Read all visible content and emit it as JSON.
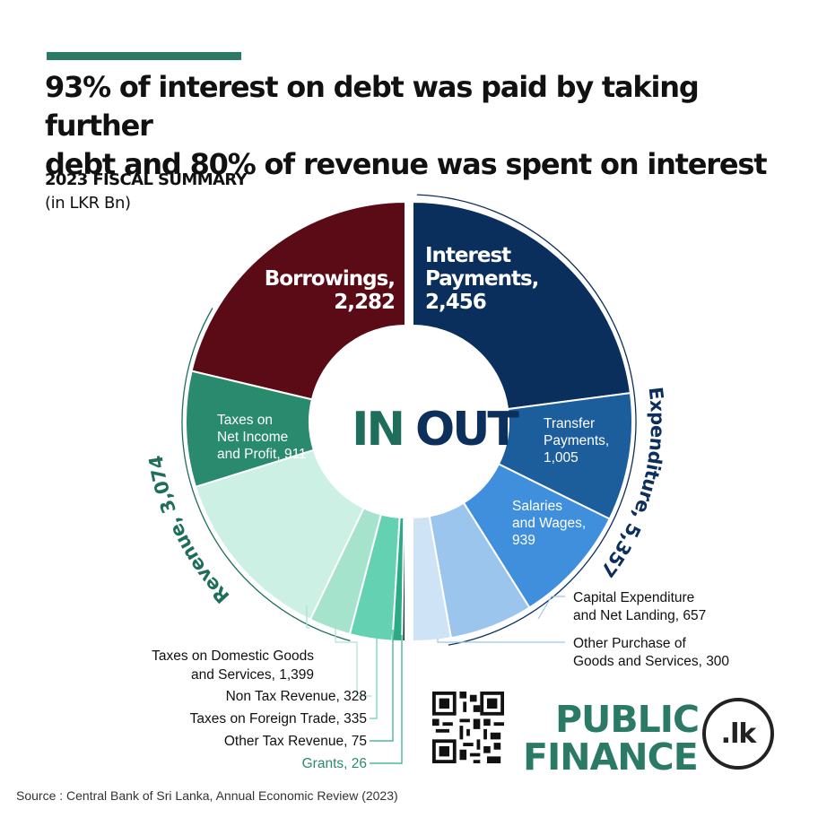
{
  "headline": {
    "line1": "93% of interest on debt was paid by taking further",
    "line2": "debt and 80% of revenue was spent on interest"
  },
  "subtitle": "2023 FISCAL SUMMARY",
  "units": "(in LKR Bn)",
  "colors": {
    "accent": "#2a7a66",
    "in_label": "#1f6e5b",
    "out_label": "#0d2f5c"
  },
  "chart_data": {
    "type": "pie",
    "center_labels": {
      "in": "IN",
      "out": "OUT"
    },
    "in": {
      "group_label": "Revenue, 3,074",
      "segments": [
        {
          "name": "Borrowings",
          "value": 2282,
          "line1": "Borrowings,",
          "line2": "2,282",
          "color": "#5a0b16"
        },
        {
          "name": "Taxes on Net Income and Profit",
          "value": 911,
          "line1": "Taxes on",
          "line2": "Net Income",
          "line3": "and Profit, 911",
          "color": "#2a8a6e"
        },
        {
          "name": "Taxes on Domestic Goods and Services",
          "value": 1399,
          "line1": "Taxes on Domestic Goods",
          "line2": "and Services, 1,399",
          "color": "#cdf0e4"
        },
        {
          "name": "Non Tax Revenue",
          "value": 328,
          "line1": "Non Tax Revenue, 328",
          "color": "#a6e3cd"
        },
        {
          "name": "Taxes on Foreign Trade",
          "value": 335,
          "line1": "Taxes on Foreign Trade, 335",
          "color": "#63d1b2"
        },
        {
          "name": "Other Tax Revenue",
          "value": 75,
          "line1": "Other Tax Revenue, 75",
          "color": "#2aab88"
        },
        {
          "name": "Grants",
          "value": 26,
          "line1": "Grants, 26",
          "color": "#123d2d"
        }
      ]
    },
    "out": {
      "group_label": "Expenditure, 5,357",
      "segments": [
        {
          "name": "Interest Payments",
          "value": 2456,
          "line1": "Interest",
          "line2": "Payments,",
          "line3": "2,456",
          "color": "#0b2f5c"
        },
        {
          "name": "Transfer Payments",
          "value": 1005,
          "line1": "Transfer",
          "line2": "Payments,",
          "line3": "1,005",
          "color": "#1c5d9c"
        },
        {
          "name": "Salaries and Wages",
          "value": 939,
          "line1": "Salaries",
          "line2": "and Wages,",
          "line3": "939",
          "color": "#3f8fdc"
        },
        {
          "name": "Capital Expenditure and Net Landing",
          "value": 657,
          "line1": "Capital Expenditure",
          "line2": "and Net Landing, 657",
          "color": "#9cc5ed"
        },
        {
          "name": "Other Purchase of Goods and Services",
          "value": 300,
          "line1": "Other Purchase of",
          "line2": "Goods and Services, 300",
          "color": "#cfe3f7"
        }
      ]
    }
  },
  "logo": {
    "line1": "PUBLIC",
    "line2": "FINANCE",
    "badge": ".lk"
  },
  "source": "Source : Central Bank of Sri Lanka, Annual Economic Review (2023)"
}
